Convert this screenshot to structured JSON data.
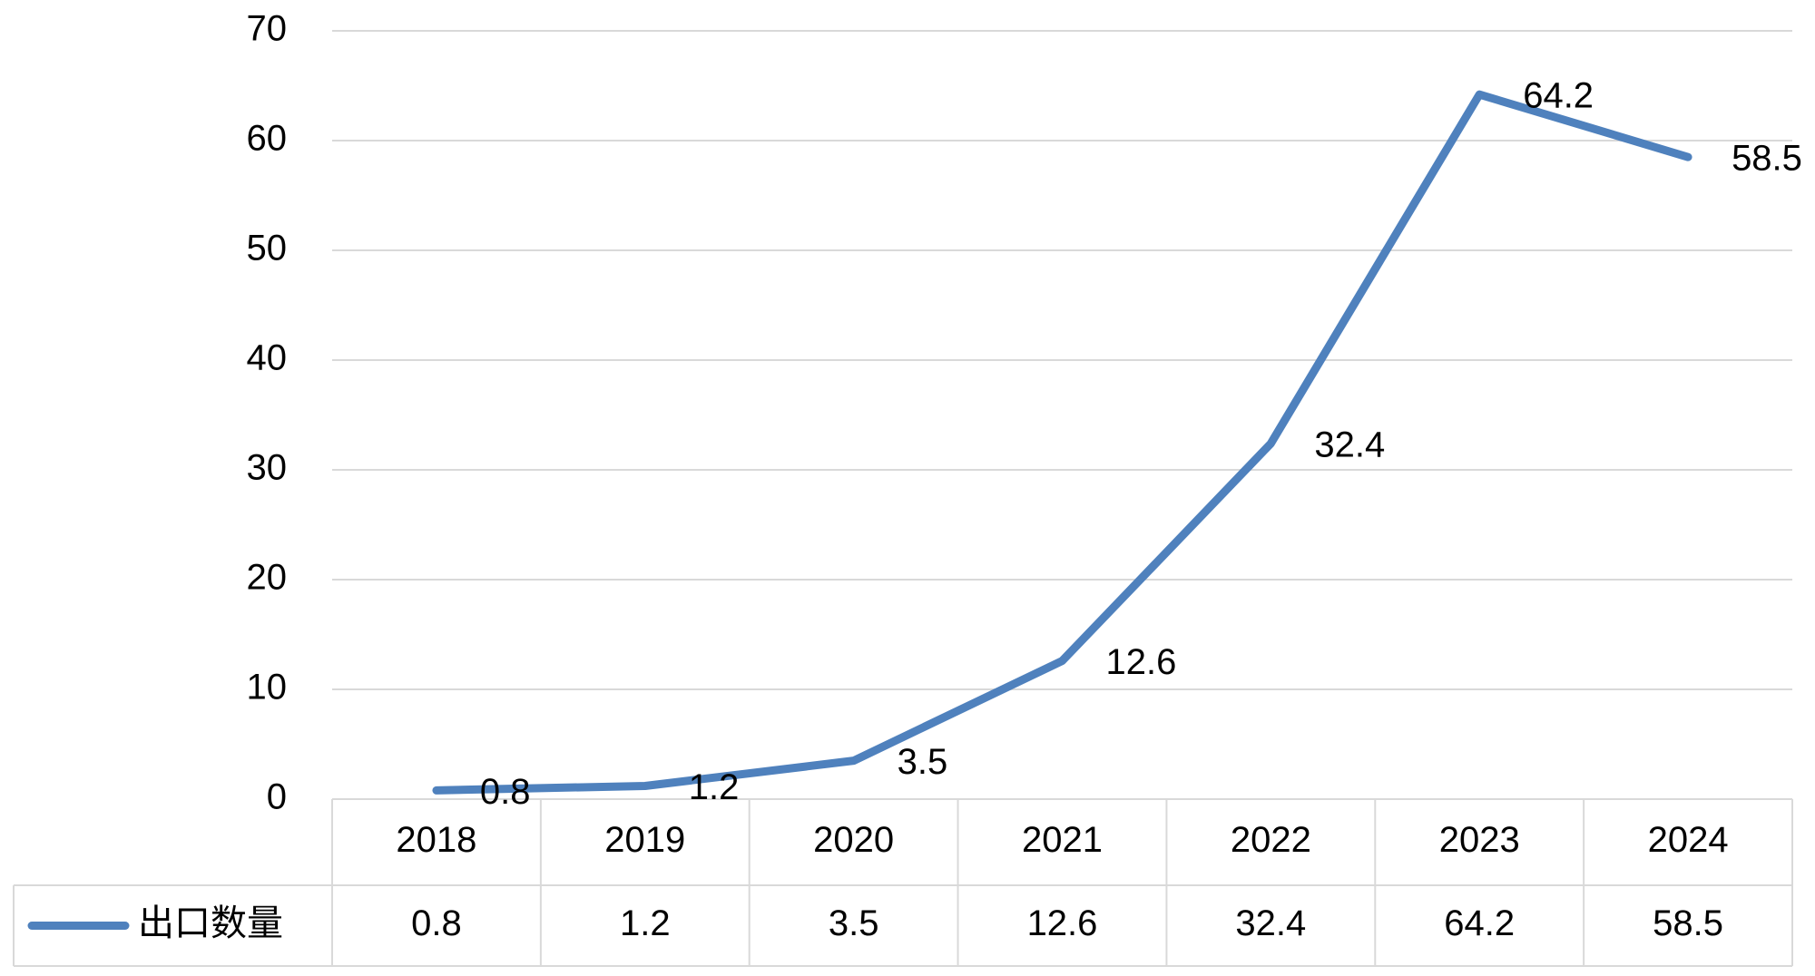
{
  "chart_data": {
    "type": "line",
    "categories": [
      "2018",
      "2019",
      "2020",
      "2021",
      "2022",
      "2023",
      "2024"
    ],
    "series": [
      {
        "name": "出口数量",
        "color": "#4f81bd",
        "values": [
          0.8,
          1.2,
          3.5,
          12.6,
          32.4,
          64.2,
          58.5
        ]
      }
    ],
    "ylim": [
      0,
      70
    ],
    "yticks": [
      0,
      10,
      20,
      30,
      40,
      50,
      60,
      70
    ],
    "grid": true,
    "data_labels": true,
    "data_table": true
  }
}
